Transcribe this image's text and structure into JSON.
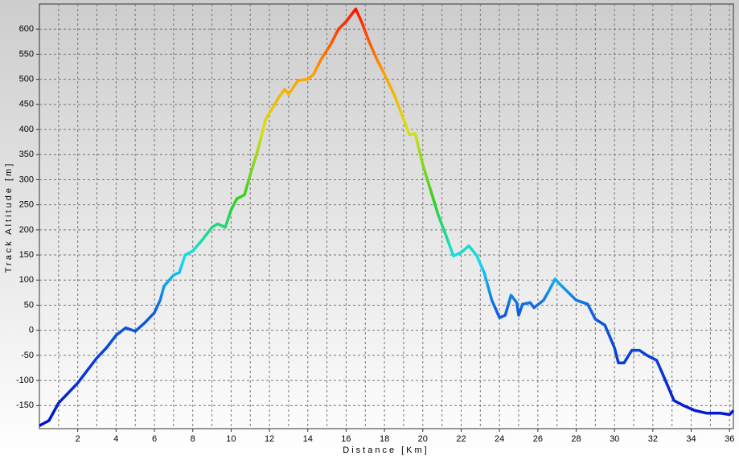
{
  "chart_data": {
    "type": "line",
    "xlabel": "Distance [Km]",
    "ylabel": "Track Altitude [m]",
    "x": [
      0,
      0.5,
      1,
      1.5,
      2,
      2.5,
      3,
      3.5,
      4,
      4.5,
      5,
      5.5,
      6,
      6.3,
      6.5,
      7,
      7.3,
      7.6,
      8,
      8.5,
      9,
      9.3,
      9.7,
      10,
      10.3,
      10.7,
      11,
      11.4,
      11.8,
      12.2,
      12.5,
      12.8,
      13,
      13.5,
      14,
      14.3,
      14.7,
      15.2,
      15.6,
      16,
      16.3,
      16.5,
      16.8,
      17.2,
      17.6,
      18,
      18.5,
      18.9,
      19.3,
      19.6,
      20,
      20.4,
      20.8,
      21.2,
      21.6,
      22,
      22.4,
      22.8,
      23.2,
      23.6,
      24,
      24.3,
      24.6,
      24.9,
      25,
      25.2,
      25.6,
      25.8,
      26.3,
      26.6,
      26.9,
      27.2,
      27.6,
      28,
      28.6,
      29,
      29.5,
      30,
      30.2,
      30.5,
      30.9,
      31.3,
      31.7,
      32.2,
      32.6,
      33.1,
      33.6,
      34.2,
      34.8,
      35.5,
      36,
      36.2
    ],
    "series": [
      {
        "name": "Track Altitude",
        "values": [
          -190,
          -180,
          -145,
          -125,
          -105,
          -80,
          -55,
          -35,
          -10,
          5,
          -2,
          15,
          35,
          60,
          88,
          110,
          115,
          150,
          158,
          180,
          205,
          212,
          205,
          240,
          262,
          270,
          310,
          360,
          420,
          445,
          465,
          480,
          470,
          498,
          500,
          510,
          540,
          570,
          600,
          615,
          630,
          640,
          615,
          575,
          540,
          510,
          470,
          430,
          390,
          392,
          330,
          280,
          230,
          190,
          148,
          155,
          168,
          150,
          115,
          60,
          25,
          30,
          70,
          55,
          30,
          52,
          55,
          45,
          60,
          80,
          102,
          90,
          75,
          60,
          52,
          22,
          10,
          -35,
          -65,
          -65,
          -40,
          -40,
          -50,
          -60,
          -95,
          -140,
          -150,
          -160,
          -165,
          -165,
          -168,
          -160
        ]
      }
    ],
    "color_stops": [
      {
        "value": -190,
        "color": "#0010d0"
      },
      {
        "value": 40,
        "color": "#1060e0"
      },
      {
        "value": 140,
        "color": "#10e0f0"
      },
      {
        "value": 260,
        "color": "#30d020"
      },
      {
        "value": 400,
        "color": "#d8e010"
      },
      {
        "value": 510,
        "color": "#ffa000"
      },
      {
        "value": 640,
        "color": "#ff1000"
      }
    ],
    "xlim": [
      0,
      36.2
    ],
    "ylim": [
      -196,
      650
    ],
    "xticks": [
      2,
      4,
      6,
      8,
      10,
      12,
      14,
      16,
      18,
      20,
      22,
      24,
      26,
      28,
      30,
      32,
      34,
      36
    ],
    "yticks": [
      -150,
      -100,
      -50,
      0,
      50,
      100,
      150,
      200,
      250,
      300,
      350,
      400,
      450,
      500,
      550,
      600
    ],
    "grid": true
  }
}
